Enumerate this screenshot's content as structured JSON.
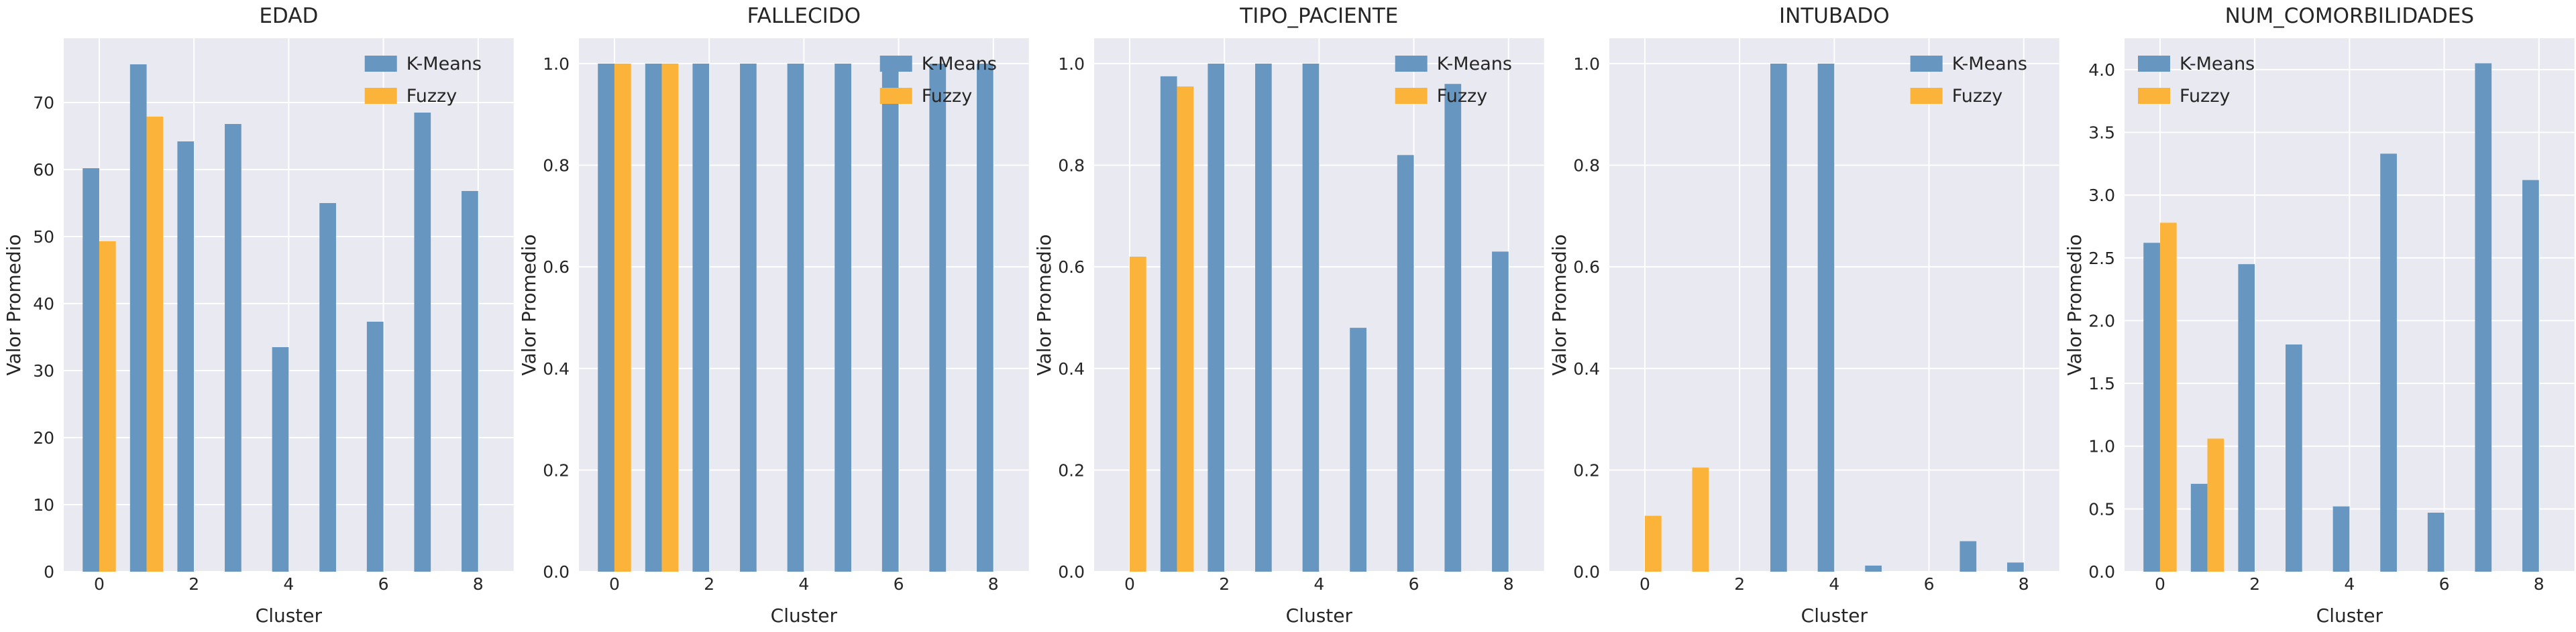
{
  "figure": {
    "background": "#ffffff",
    "panel_background": "#e9e9f1",
    "grid_color": "#ffffff",
    "text_color": "#262626",
    "series_colors": {
      "kmeans": "#6797c0",
      "fuzzy": "#fbb339"
    },
    "legend_labels": {
      "kmeans": "K-Means",
      "fuzzy": "Fuzzy"
    }
  },
  "chart_data": [
    {
      "type": "bar",
      "title": "EDAD",
      "xlabel": "Cluster",
      "ylabel": "Valor Promedio",
      "categories": [
        0,
        1,
        2,
        3,
        4,
        5,
        6,
        7,
        8
      ],
      "series": [
        {
          "name": "K-Means",
          "color": "kmeans",
          "values": [
            60.2,
            75.7,
            64.2,
            66.8,
            33.5,
            55.0,
            37.3,
            68.5,
            56.8
          ]
        },
        {
          "name": "Fuzzy",
          "color": "fuzzy",
          "values": [
            49.3,
            67.9,
            null,
            null,
            null,
            null,
            null,
            null,
            null
          ]
        }
      ],
      "ylim": [
        0,
        79.6
      ],
      "ytick_values": [
        0,
        10,
        20,
        30,
        40,
        50,
        60,
        70
      ],
      "ytick_labels": [
        "0",
        "10",
        "20",
        "30",
        "40",
        "50",
        "60",
        "70"
      ],
      "xtick_values": [
        0,
        2,
        4,
        6,
        8
      ],
      "xtick_labels": [
        "0",
        "2",
        "4",
        "6",
        "8"
      ],
      "legend_loc": "upper-right",
      "grid": true
    },
    {
      "type": "bar",
      "title": "FALLECIDO",
      "xlabel": "Cluster",
      "ylabel": "Valor Promedio",
      "categories": [
        0,
        1,
        2,
        3,
        4,
        5,
        6,
        7,
        8
      ],
      "series": [
        {
          "name": "K-Means",
          "color": "kmeans",
          "values": [
            1.0,
            1.0,
            1.0,
            1.0,
            1.0,
            1.0,
            1.0,
            1.0,
            1.0
          ]
        },
        {
          "name": "Fuzzy",
          "color": "fuzzy",
          "values": [
            1.0,
            1.0,
            null,
            null,
            null,
            null,
            null,
            null,
            null
          ]
        }
      ],
      "ylim": [
        0,
        1.05
      ],
      "ytick_values": [
        0,
        0.2,
        0.4,
        0.6,
        0.8,
        1.0
      ],
      "ytick_labels": [
        "0.0",
        "0.2",
        "0.4",
        "0.6",
        "0.8",
        "1.0"
      ],
      "xtick_values": [
        0,
        2,
        4,
        6,
        8
      ],
      "xtick_labels": [
        "0",
        "2",
        "4",
        "6",
        "8"
      ],
      "legend_loc": "upper-right",
      "grid": true
    },
    {
      "type": "bar",
      "title": "TIPO_PACIENTE",
      "xlabel": "Cluster",
      "ylabel": "Valor Promedio",
      "categories": [
        0,
        1,
        2,
        3,
        4,
        5,
        6,
        7,
        8
      ],
      "series": [
        {
          "name": "K-Means",
          "color": "kmeans",
          "values": [
            0.0,
            0.975,
            1.0,
            1.0,
            1.0,
            0.48,
            0.82,
            0.96,
            0.63
          ]
        },
        {
          "name": "Fuzzy",
          "color": "fuzzy",
          "values": [
            0.62,
            0.955,
            null,
            null,
            null,
            null,
            null,
            null,
            null
          ]
        }
      ],
      "ylim": [
        0,
        1.05
      ],
      "ytick_values": [
        0,
        0.2,
        0.4,
        0.6,
        0.8,
        1.0
      ],
      "ytick_labels": [
        "0.0",
        "0.2",
        "0.4",
        "0.6",
        "0.8",
        "1.0"
      ],
      "xtick_values": [
        0,
        2,
        4,
        6,
        8
      ],
      "xtick_labels": [
        "0",
        "2",
        "4",
        "6",
        "8"
      ],
      "legend_loc": "upper-right",
      "grid": true
    },
    {
      "type": "bar",
      "title": "INTUBADO",
      "xlabel": "Cluster",
      "ylabel": "Valor Promedio",
      "categories": [
        0,
        1,
        2,
        3,
        4,
        5,
        6,
        7,
        8
      ],
      "series": [
        {
          "name": "K-Means",
          "color": "kmeans",
          "values": [
            0.0,
            0.0,
            0.0,
            1.0,
            1.0,
            0.012,
            0.0,
            0.06,
            0.018
          ]
        },
        {
          "name": "Fuzzy",
          "color": "fuzzy",
          "values": [
            0.11,
            0.205,
            null,
            null,
            null,
            null,
            null,
            null,
            null
          ]
        }
      ],
      "ylim": [
        0,
        1.05
      ],
      "ytick_values": [
        0,
        0.2,
        0.4,
        0.6,
        0.8,
        1.0
      ],
      "ytick_labels": [
        "0.0",
        "0.2",
        "0.4",
        "0.6",
        "0.8",
        "1.0"
      ],
      "xtick_values": [
        0,
        2,
        4,
        6,
        8
      ],
      "xtick_labels": [
        "0",
        "2",
        "4",
        "6",
        "8"
      ],
      "legend_loc": "upper-right",
      "grid": true
    },
    {
      "type": "bar",
      "title": "NUM_COMORBILIDADES",
      "xlabel": "Cluster",
      "ylabel": "Valor Promedio",
      "categories": [
        0,
        1,
        2,
        3,
        4,
        5,
        6,
        7,
        8
      ],
      "series": [
        {
          "name": "K-Means",
          "color": "kmeans",
          "values": [
            2.62,
            0.7,
            2.45,
            1.81,
            0.52,
            3.33,
            0.47,
            4.05,
            3.12
          ]
        },
        {
          "name": "Fuzzy",
          "color": "fuzzy",
          "values": [
            2.78,
            1.06,
            null,
            null,
            null,
            null,
            null,
            null,
            null
          ]
        }
      ],
      "ylim": [
        0,
        4.25
      ],
      "ytick_values": [
        0,
        0.5,
        1.0,
        1.5,
        2.0,
        2.5,
        3.0,
        3.5,
        4.0
      ],
      "ytick_labels": [
        "0.0",
        "0.5",
        "1.0",
        "1.5",
        "2.0",
        "2.5",
        "3.0",
        "3.5",
        "4.0"
      ],
      "xtick_values": [
        0,
        2,
        4,
        6,
        8
      ],
      "xtick_labels": [
        "0",
        "2",
        "4",
        "6",
        "8"
      ],
      "legend_loc": "upper-left",
      "grid": true
    }
  ]
}
